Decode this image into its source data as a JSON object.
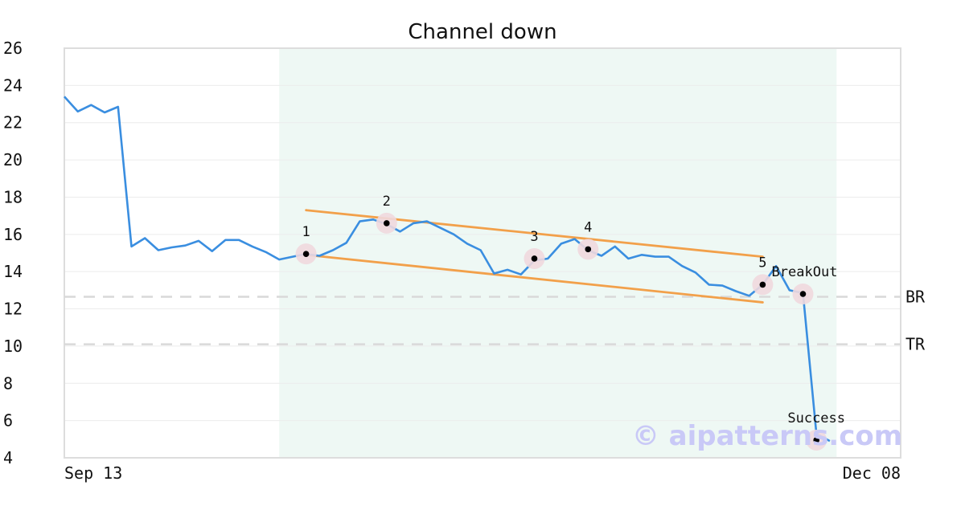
{
  "watermark": "© aipatterns.com",
  "chart_data": {
    "type": "line",
    "title": "Channel down",
    "xlabel": "",
    "ylabel": "",
    "ylim": [
      4,
      26
    ],
    "yticks": [
      4,
      6,
      8,
      10,
      12,
      14,
      16,
      18,
      20,
      22,
      24,
      26
    ],
    "x_tick_labels": [
      {
        "index": 0,
        "label": "Sep 13"
      },
      {
        "index": 63,
        "label": "Dec 08"
      }
    ],
    "grid": true,
    "colors": {
      "line": "#3a8ee0",
      "channel": "#f2a04a",
      "highlight_band": "#eef8f4",
      "marker_halo": "#efd8de",
      "level_line": "#d9d9d9"
    },
    "series": [
      {
        "values": [
          23.4,
          22.6,
          22.95,
          22.55,
          22.85,
          15.35,
          15.8,
          15.15,
          15.3,
          15.4,
          15.65,
          15.1,
          15.7,
          15.7,
          15.35,
          15.05,
          14.65,
          14.8,
          14.95,
          14.85,
          15.15,
          15.55,
          16.7,
          16.8,
          16.55,
          16.15,
          16.6,
          16.7,
          16.35,
          16.0,
          15.5,
          15.15,
          13.9,
          14.1,
          13.85,
          14.6,
          14.7,
          15.5,
          15.75,
          15.15,
          14.85,
          15.35,
          14.7,
          14.9,
          14.8,
          14.8,
          14.3,
          13.95,
          13.3,
          13.25,
          12.95,
          12.7,
          13.3,
          14.3,
          13.0,
          12.85,
          5.3,
          4.9
        ]
      }
    ],
    "highlight_range": [
      16,
      57.5
    ],
    "channel_lines": [
      {
        "start": {
          "index": 18,
          "value": 17.3
        },
        "end": {
          "index": 52,
          "value": 14.8
        }
      },
      {
        "start": {
          "index": 18,
          "value": 14.9
        },
        "end": {
          "index": 52,
          "value": 12.35
        }
      }
    ],
    "levels": [
      {
        "label": "BR",
        "value": 12.65
      },
      {
        "label": "TR",
        "value": 10.1
      }
    ],
    "points": [
      {
        "label": "1",
        "index": 18,
        "value": 14.95
      },
      {
        "label": "2",
        "index": 24,
        "value": 16.6
      },
      {
        "label": "3",
        "index": 35,
        "value": 14.7
      },
      {
        "label": "4",
        "index": 39,
        "value": 15.2
      },
      {
        "label": "5",
        "index": 52,
        "value": 13.3
      },
      {
        "label": "BreakOut",
        "index": 55,
        "value": 12.8
      },
      {
        "label": "Success",
        "index": 56,
        "value": 4.95
      }
    ]
  }
}
